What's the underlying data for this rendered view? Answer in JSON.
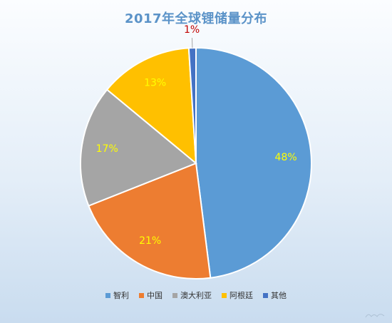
{
  "chart_data": {
    "type": "pie",
    "title": "2017年全球锂储量分布",
    "categories": [
      "智利",
      "中国",
      "澳大利亚",
      "阿根廷",
      "其他"
    ],
    "values": [
      48,
      21,
      17,
      13,
      1
    ],
    "labels": [
      "48%",
      "21%",
      "17%",
      "13%",
      "1%"
    ],
    "colors": [
      "#5b9bd5",
      "#ed7d31",
      "#a5a5a5",
      "#ffc000",
      "#4472c4"
    ],
    "label_colors": [
      "#ffff00",
      "#ffff00",
      "#ffff00",
      "#ffff00",
      "#c00000"
    ],
    "legend_position": "bottom"
  }
}
